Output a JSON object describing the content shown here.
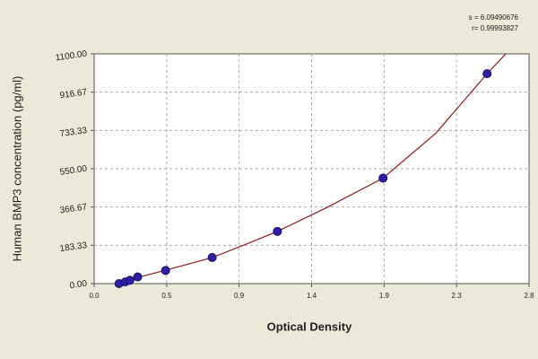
{
  "chart_data": {
    "type": "scatter",
    "y_label": "Human BMP3 concentration (pg/ml)",
    "x_label": "Optical Density",
    "annotations": [
      "s = 6.09490676",
      "r= 0.99993827"
    ],
    "xlim": [
      0,
      2.8
    ],
    "xticks": [
      {
        "value": 0,
        "label": "0.0"
      },
      {
        "value": 0.467,
        "label": "0.5"
      },
      {
        "value": 0.933,
        "label": "0.9"
      },
      1.4,
      {
        "value": 1.867,
        "label": "1.9"
      },
      {
        "value": 2.333,
        "label": "2.3"
      },
      2.8
    ],
    "ylim": [
      0,
      1100
    ],
    "yticks": [
      {
        "value": 0,
        "label": "0.00"
      },
      183.33,
      366.67,
      {
        "value": 550,
        "label": "550.00"
      },
      733.33,
      916.67,
      {
        "value": 1100,
        "label": "1100.00"
      }
    ],
    "grid": true,
    "series": [
      {
        "type": "line",
        "color": "#8b1a1a",
        "x": [
          0.15,
          0.3,
          0.46,
          0.6,
          0.76,
          1.0,
          1.18,
          1.5,
          1.86,
          2.2,
          2.53,
          2.65
        ],
        "values": [
          0,
          33,
          64,
          92,
          125,
          195,
          250,
          365,
          505,
          720,
          1005,
          1100
        ]
      },
      {
        "type": "scatter",
        "color": "#2d1fa6",
        "x": [
          0.16,
          0.2,
          0.23,
          0.28,
          0.46,
          0.76,
          1.18,
          1.86,
          2.53
        ],
        "values": [
          0,
          8,
          16,
          32,
          63,
          125,
          250,
          505,
          1005
        ]
      }
    ]
  }
}
